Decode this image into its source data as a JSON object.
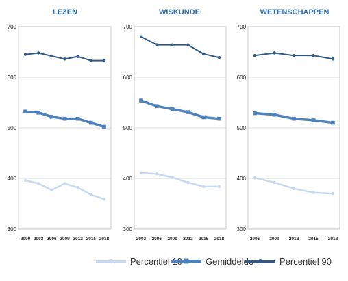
{
  "chart_data": [
    {
      "type": "line",
      "title": "LEZEN",
      "x": [
        "2000",
        "2003",
        "2006",
        "2009",
        "2012",
        "2015",
        "2018"
      ],
      "ylim": [
        300,
        700
      ],
      "yticks": [
        300,
        400,
        500,
        600,
        700
      ],
      "series": [
        {
          "name": "Percentiel 10",
          "values": [
            396,
            390,
            377,
            390,
            382,
            368,
            359
          ]
        },
        {
          "name": "Gemiddelde",
          "values": [
            532,
            530,
            522,
            518,
            518,
            510,
            502
          ]
        },
        {
          "name": "Percentiel 90",
          "values": [
            645,
            648,
            642,
            636,
            641,
            633,
            633
          ]
        }
      ]
    },
    {
      "type": "line",
      "title": "WISKUNDE",
      "x": [
        "2003",
        "2006",
        "2009",
        "2012",
        "2015",
        "2018"
      ],
      "ylim": [
        300,
        700
      ],
      "yticks": [
        300,
        400,
        500,
        600,
        700
      ],
      "series": [
        {
          "name": "Percentiel 10",
          "values": [
            411,
            409,
            402,
            392,
            384,
            384
          ]
        },
        {
          "name": "Gemiddelde",
          "values": [
            554,
            543,
            537,
            531,
            521,
            518
          ]
        },
        {
          "name": "Percentiel 90",
          "values": [
            680,
            664,
            664,
            664,
            646,
            639
          ]
        }
      ]
    },
    {
      "type": "line",
      "title": "WETENSCHAPPEN",
      "x": [
        "2006",
        "2009",
        "2012",
        "2015",
        "2018"
      ],
      "ylim": [
        300,
        700
      ],
      "yticks": [
        300,
        400,
        500,
        600,
        700
      ],
      "series": [
        {
          "name": "Percentiel 10",
          "values": [
            401,
            392,
            380,
            372,
            370
          ]
        },
        {
          "name": "Gemiddelde",
          "values": [
            529,
            526,
            518,
            515,
            510
          ]
        },
        {
          "name": "Percentiel 90",
          "values": [
            643,
            648,
            643,
            643,
            636
          ]
        }
      ]
    }
  ],
  "legend": [
    {
      "label": "Percentiel 10",
      "color": "#c6d9f1"
    },
    {
      "label": "Gemiddelde",
      "color": "#4f81bd"
    },
    {
      "label": "Percentiel 90",
      "color": "#2f5a87"
    }
  ],
  "colors": {
    "p10": "#c6d9f1",
    "mean": "#4f81bd",
    "p90": "#2f5a87",
    "title": "#2f6db5",
    "grid": "#d0d0d0"
  }
}
